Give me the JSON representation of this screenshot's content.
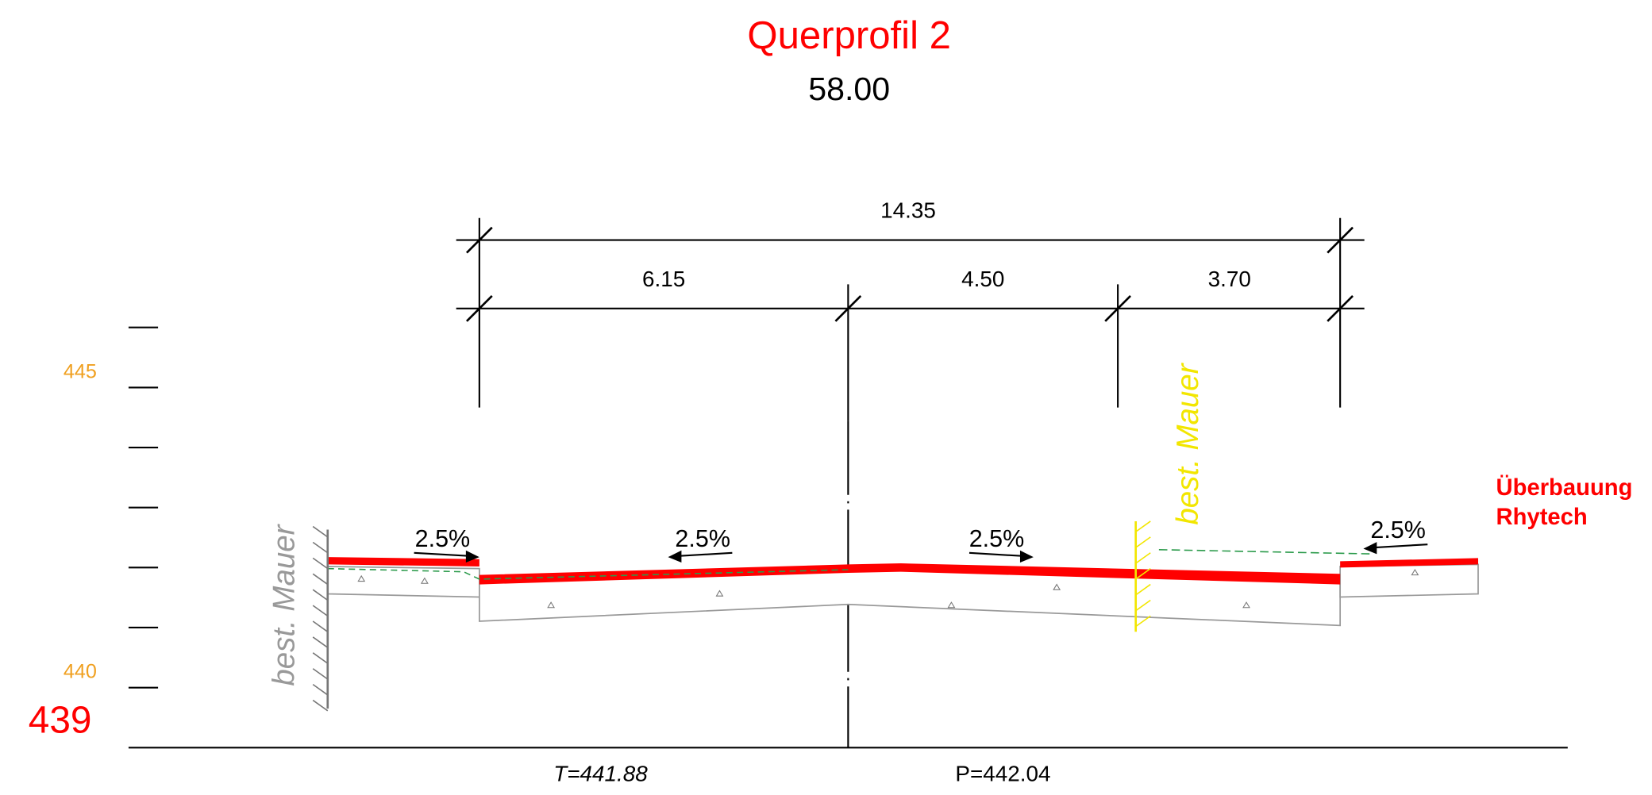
{
  "title": "Querprofil 2",
  "station": "58.00",
  "dimensions": {
    "total": "14.35",
    "segments": [
      "6.15",
      "4.50",
      "3.70"
    ]
  },
  "slopes": [
    "2.5%",
    "2.5%",
    "2.5%",
    "2.5%"
  ],
  "wall_left": "best. Mauer",
  "wall_right": "best. Mauer",
  "development": [
    "Überbauung",
    "Rhytech"
  ],
  "elevations": {
    "labels": [
      "445",
      "440"
    ],
    "base": "439"
  },
  "terrain": "T=441.88",
  "project": "P=442.04"
}
